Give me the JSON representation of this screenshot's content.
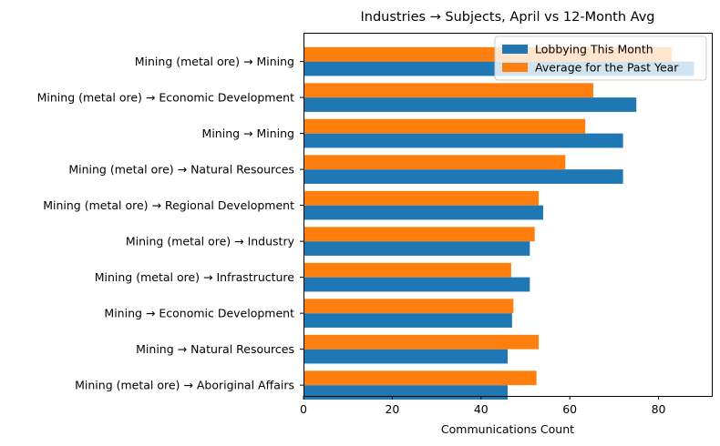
{
  "chart_data": {
    "type": "bar",
    "orientation": "horizontal",
    "title": "Industries → Subjects, April vs 12-Month Avg",
    "xlabel": "Communications Count",
    "ylabel": "",
    "xlim": [
      0,
      92
    ],
    "xticks": [
      0,
      20,
      40,
      60,
      80
    ],
    "grid": false,
    "legend_position": "top-right",
    "categories": [
      "Mining (metal ore) → Mining",
      "Mining (metal ore) → Economic Development",
      "Mining → Mining",
      "Mining (metal ore) → Natural Resources",
      "Mining (metal ore) → Regional Development",
      "Mining (metal ore) → Industry",
      "Mining (metal ore) → Infrastructure",
      "Mining → Economic Development",
      "Mining → Natural Resources",
      "Mining (metal ore) → Aboriginal Affairs"
    ],
    "series": [
      {
        "name": "Lobbying This Month",
        "color": "#1f77b4",
        "values": [
          88,
          75,
          72,
          72,
          54,
          51,
          51,
          47,
          46,
          46
        ]
      },
      {
        "name": "Average for the Past Year",
        "color": "#ff7f0e",
        "values": [
          83,
          65.3,
          63.5,
          59,
          53,
          52.1,
          46.8,
          47.3,
          53,
          52.5
        ]
      }
    ]
  }
}
